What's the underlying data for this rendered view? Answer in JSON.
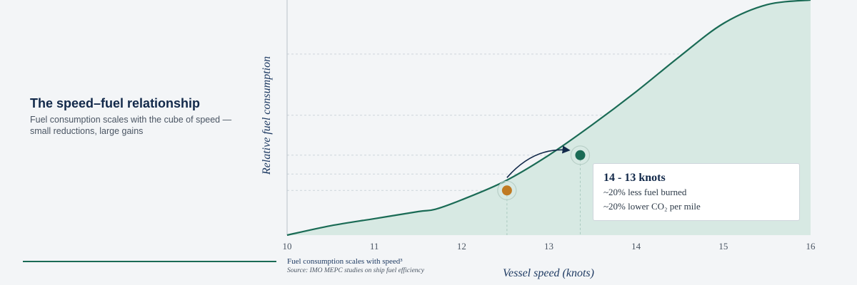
{
  "panel": {
    "title": "The speed–fuel relationship",
    "subtitle": "Fuel consumption scales with the cube of speed — small reductions, large gains"
  },
  "caption": {
    "main": "Fuel consumption scales with speed³",
    "source": "Source: IMO MEPC studies on ship fuel efficiency"
  },
  "callout": {
    "title": "14 - 13 knots",
    "line1": "~20% less fuel burned",
    "line2": "~20% lower CO₂ per mile"
  },
  "colors": {
    "curve": "#1a6b55",
    "area": "#d7e9e3",
    "orange_point": "#c07a22",
    "green_point": "#1a6b55",
    "arrow": "#12294a"
  },
  "chart_data": {
    "type": "area",
    "title": "",
    "xlabel": "Vessel speed (knots)",
    "ylabel": "Relative fuel consumption",
    "xlim": [
      10,
      16
    ],
    "ylim": [
      0,
      1
    ],
    "x_ticks": [
      10,
      11,
      12,
      13,
      14,
      15,
      16
    ],
    "y_ticks_shown": false,
    "grid": "horizontal dashed",
    "series": [
      {
        "x": [
          10,
          10.5,
          11,
          11.5,
          11.7,
          12,
          12.5,
          13,
          13.5,
          14,
          14.5,
          15,
          15.5,
          16
        ],
        "y": [
          0.0,
          0.04,
          0.07,
          0.1,
          0.11,
          0.15,
          0.23,
          0.34,
          0.47,
          0.61,
          0.76,
          0.9,
          0.98,
          1.0
        ]
      }
    ],
    "highlighted_points": [
      {
        "x": 12.52,
        "y": 0.19,
        "color": "orange"
      },
      {
        "x": 13.36,
        "y": 0.34,
        "color": "green"
      }
    ],
    "gridlines_y": [
      0.19,
      0.26,
      0.34,
      0.51,
      0.77
    ]
  }
}
